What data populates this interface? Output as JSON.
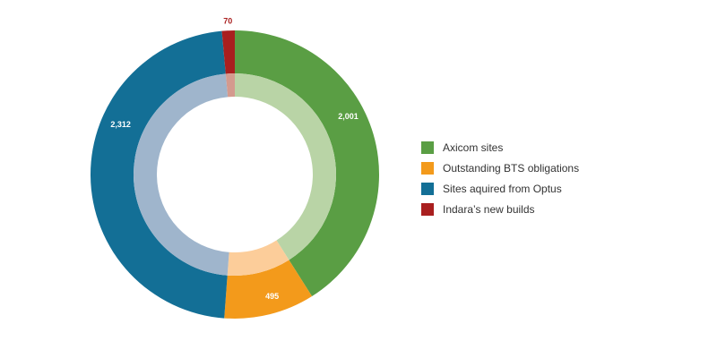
{
  "chart_data": {
    "type": "pie",
    "variant": "donut",
    "title": "",
    "categories": [
      "Axicom sites",
      "Outstanding BTS obligations",
      "Sites aquired from Optus",
      "Indara’s new builds"
    ],
    "values": [
      2001,
      495,
      2312,
      70
    ],
    "labels": [
      "2,001",
      "495",
      "2,312",
      "70"
    ],
    "colors": [
      "#5a9e44",
      "#f39a1b",
      "#136f96",
      "#a91f1f"
    ],
    "inner_colors": [
      "#b9d4a6",
      "#fccd9a",
      "#9fb5cc",
      "#d49a8e"
    ],
    "label_colors": [
      "#ffffff",
      "#ffffff",
      "#ffffff",
      "#a91f1f"
    ],
    "start_angle_deg": 0,
    "direction": "clockwise",
    "legend_position": "right"
  }
}
